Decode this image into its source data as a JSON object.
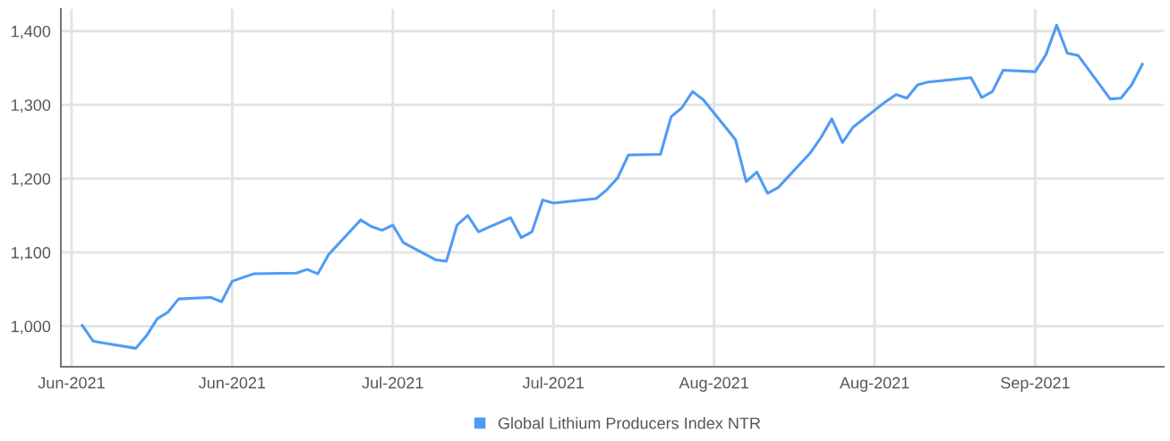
{
  "chart_data": {
    "type": "line",
    "x": [
      "2021-06-04",
      "2021-06-05",
      "2021-06-06",
      "2021-06-09",
      "2021-06-10",
      "2021-06-11",
      "2021-06-12",
      "2021-06-13",
      "2021-06-16",
      "2021-06-17",
      "2021-06-18",
      "2021-06-20",
      "2021-06-24",
      "2021-06-25",
      "2021-06-26",
      "2021-06-27",
      "2021-06-30",
      "2021-07-01",
      "2021-07-02",
      "2021-07-03",
      "2021-07-04",
      "2021-07-07",
      "2021-07-08",
      "2021-07-09",
      "2021-07-10",
      "2021-07-11",
      "2021-07-14",
      "2021-07-15",
      "2021-07-16",
      "2021-07-17",
      "2021-07-18",
      "2021-07-22",
      "2021-07-23",
      "2021-07-24",
      "2021-07-25",
      "2021-07-28",
      "2021-07-29",
      "2021-07-30",
      "2021-07-31",
      "2021-08-01",
      "2021-08-04",
      "2021-08-05",
      "2021-08-06",
      "2021-08-07",
      "2021-08-08",
      "2021-08-11",
      "2021-08-12",
      "2021-08-13",
      "2021-08-14",
      "2021-08-15",
      "2021-08-18",
      "2021-08-19",
      "2021-08-20",
      "2021-08-21",
      "2021-08-22",
      "2021-08-26",
      "2021-08-27",
      "2021-08-28",
      "2021-08-29",
      "2021-09-01",
      "2021-09-02",
      "2021-09-03",
      "2021-09-04",
      "2021-09-05",
      "2021-09-08",
      "2021-09-09",
      "2021-09-10",
      "2021-09-11"
    ],
    "series": [
      {
        "name": "Global Lithium Producers Index NTR",
        "color": "#4f9bf5",
        "values": [
          1001,
          980,
          977,
          970,
          987,
          1010,
          1019,
          1037,
          1039,
          1033,
          1061,
          1071,
          1072,
          1077,
          1071,
          1097,
          1144,
          1135,
          1130,
          1137,
          1113,
          1090,
          1088,
          1137,
          1150,
          1128,
          1147,
          1120,
          1128,
          1171,
          1167,
          1173,
          1185,
          1201,
          1232,
          1233,
          1284,
          1296,
          1318,
          1307,
          1253,
          1196,
          1209,
          1180,
          1188,
          1235,
          1256,
          1281,
          1249,
          1270,
          1304,
          1314,
          1309,
          1327,
          1331,
          1337,
          1310,
          1318,
          1347,
          1345,
          1368,
          1408,
          1370,
          1367,
          1308,
          1309,
          1327,
          1355
        ]
      }
    ],
    "xlim": [
      "2021-06-02",
      "2021-09-13"
    ],
    "xticks": [
      {
        "value": "2021-06-03",
        "label": "Jun-2021"
      },
      {
        "value": "2021-06-18",
        "label": "Jun-2021"
      },
      {
        "value": "2021-07-03",
        "label": "Jul-2021"
      },
      {
        "value": "2021-07-18",
        "label": "Jul-2021"
      },
      {
        "value": "2021-08-02",
        "label": "Aug-2021"
      },
      {
        "value": "2021-08-17",
        "label": "Aug-2021"
      },
      {
        "value": "2021-09-01",
        "label": "Sep-2021"
      }
    ],
    "ylim": [
      945,
      1430
    ],
    "yticks": [
      {
        "value": 1000,
        "label": "1,000"
      },
      {
        "value": 1100,
        "label": "1,100"
      },
      {
        "value": 1200,
        "label": "1,200"
      },
      {
        "value": 1300,
        "label": "1,300"
      },
      {
        "value": 1400,
        "label": "1,400"
      }
    ],
    "grid": true,
    "legend": "bottom",
    "marker": "none",
    "line_style": "solid"
  }
}
